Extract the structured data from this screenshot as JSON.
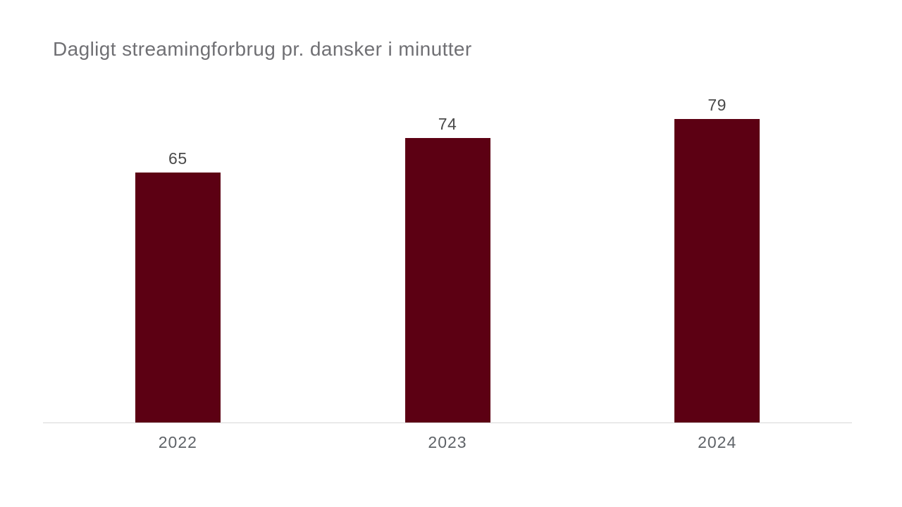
{
  "chart_data": {
    "type": "bar",
    "title": "Dagligt streamingforbrug pr. dansker i minutter",
    "categories": [
      "2022",
      "2023",
      "2024"
    ],
    "values": [
      65,
      74,
      79
    ],
    "value_labels": [
      "65",
      "74",
      "79"
    ],
    "xlabel": "",
    "ylabel": "",
    "ylim": [
      0,
      80
    ],
    "grid": false,
    "legend": false,
    "bar_color": "#5c0013",
    "axis_line_color": "#d8d8d8",
    "title_color": "#707074",
    "value_label_color": "#4a4a4a",
    "tick_label_color": "#5f6368"
  }
}
